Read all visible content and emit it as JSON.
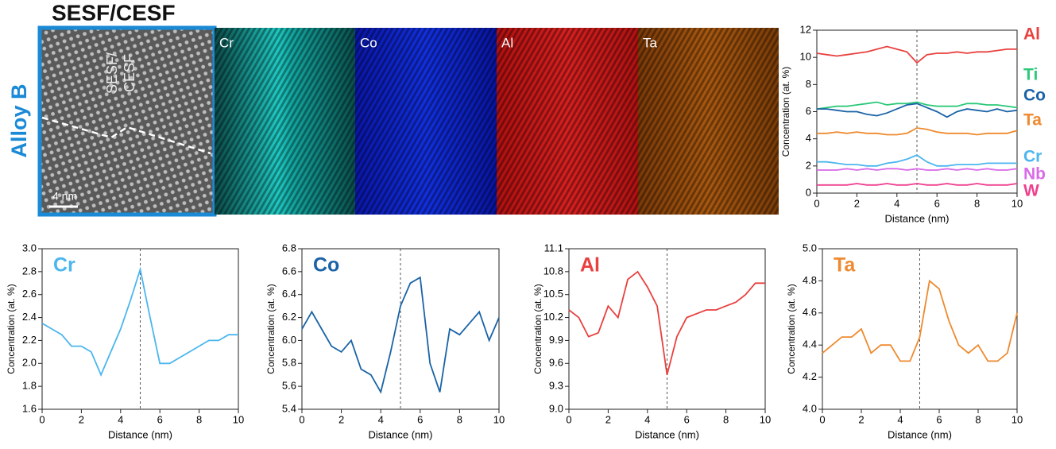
{
  "figure": {
    "heading": "SESF/CESF",
    "row_label": "Alloy B",
    "image_label": [
      "SESF/",
      "CESF"
    ],
    "scale_bar": "4 nm",
    "maps": [
      "Cr",
      "Co",
      "Al",
      "Ta"
    ]
  },
  "chart_data": [
    {
      "type": "line",
      "xlabel": "Distance (nm)",
      "ylabel": "Concentration (at. %)",
      "xlim": [
        0,
        10
      ],
      "ylim": [
        0,
        12
      ],
      "xticks": [
        0,
        2,
        4,
        6,
        8,
        10
      ],
      "yticks": [
        0,
        2,
        4,
        6,
        8,
        10,
        12
      ],
      "vline": 5,
      "legend": "right",
      "x": [
        0,
        0.5,
        1,
        1.5,
        2,
        2.5,
        3,
        3.5,
        4,
        4.5,
        5,
        5.5,
        6,
        6.5,
        7,
        7.5,
        8,
        8.5,
        9,
        9.5,
        10
      ],
      "series": [
        {
          "name": "Al",
          "color": "#e8413f",
          "values": [
            10.3,
            10.2,
            10.1,
            10.2,
            10.3,
            10.4,
            10.6,
            10.8,
            10.6,
            10.4,
            9.6,
            10.2,
            10.3,
            10.3,
            10.4,
            10.3,
            10.4,
            10.4,
            10.5,
            10.6,
            10.6
          ]
        },
        {
          "name": "Ti",
          "color": "#2cc97a",
          "values": [
            6.2,
            6.3,
            6.4,
            6.4,
            6.5,
            6.6,
            6.7,
            6.5,
            6.6,
            6.6,
            6.7,
            6.5,
            6.4,
            6.4,
            6.4,
            6.6,
            6.6,
            6.5,
            6.5,
            6.4,
            6.3
          ]
        },
        {
          "name": "Co",
          "color": "#1a63a6",
          "values": [
            6.2,
            6.2,
            6.1,
            6.0,
            6.0,
            5.8,
            5.7,
            5.9,
            6.2,
            6.5,
            6.6,
            6.3,
            6.0,
            5.6,
            6.0,
            6.2,
            6.1,
            6.0,
            6.2,
            6.0,
            6.1
          ]
        },
        {
          "name": "Ta",
          "color": "#ee8a2f",
          "values": [
            4.4,
            4.4,
            4.5,
            4.4,
            4.5,
            4.4,
            4.4,
            4.3,
            4.3,
            4.4,
            4.8,
            4.7,
            4.5,
            4.4,
            4.4,
            4.4,
            4.3,
            4.4,
            4.4,
            4.4,
            4.6
          ]
        },
        {
          "name": "Cr",
          "color": "#4cb6ee",
          "values": [
            2.3,
            2.3,
            2.2,
            2.1,
            2.1,
            2.0,
            2.0,
            2.2,
            2.3,
            2.5,
            2.8,
            2.3,
            2.0,
            2.0,
            2.1,
            2.1,
            2.1,
            2.2,
            2.2,
            2.2,
            2.2
          ]
        },
        {
          "name": "Nb",
          "color": "#d96ae8",
          "values": [
            1.7,
            1.7,
            1.7,
            1.8,
            1.7,
            1.8,
            1.7,
            1.8,
            1.8,
            1.7,
            1.8,
            1.7,
            1.7,
            1.8,
            1.7,
            1.8,
            1.7,
            1.8,
            1.7,
            1.7,
            1.8
          ]
        },
        {
          "name": "W",
          "color": "#ef3f8f",
          "values": [
            0.6,
            0.6,
            0.6,
            0.6,
            0.7,
            0.6,
            0.6,
            0.7,
            0.6,
            0.6,
            0.7,
            0.6,
            0.6,
            0.7,
            0.6,
            0.6,
            0.7,
            0.6,
            0.6,
            0.6,
            0.7
          ]
        }
      ]
    },
    {
      "type": "line",
      "label": "Cr",
      "color": "#4cb6ee",
      "xlabel": "Distance (nm)",
      "ylabel": "Concentration (at. %)",
      "xlim": [
        0,
        10
      ],
      "ylim": [
        1.6,
        3.0
      ],
      "xticks": [
        0,
        2,
        4,
        6,
        8,
        10
      ],
      "yticks": [
        1.6,
        1.8,
        {
          "value": 2,
          "label": "2.0"
        },
        2.2,
        2.4,
        2.6,
        2.8,
        {
          "value": 3,
          "label": "3.0"
        }
      ],
      "vline": 5,
      "x": [
        0,
        0.5,
        1,
        1.5,
        2,
        2.5,
        3,
        3.5,
        4,
        4.5,
        5,
        5.5,
        6,
        6.5,
        7,
        7.5,
        8,
        8.5,
        9,
        9.5,
        10
      ],
      "values": [
        2.35,
        2.3,
        2.25,
        2.15,
        2.15,
        2.1,
        1.9,
        2.1,
        2.3,
        2.55,
        2.82,
        2.4,
        2.0,
        2.0,
        2.05,
        2.1,
        2.15,
        2.2,
        2.2,
        2.25,
        2.25
      ]
    },
    {
      "type": "line",
      "label": "Co",
      "color": "#1a63a6",
      "xlabel": "Distance (nm)",
      "ylabel": "Concentration (at. %)",
      "xlim": [
        0,
        10
      ],
      "ylim": [
        5.4,
        6.8
      ],
      "xticks": [
        0,
        2,
        4,
        6,
        8,
        10
      ],
      "yticks": [
        5.4,
        5.6,
        5.8,
        {
          "value": 6,
          "label": "6.0"
        },
        6.2,
        6.4,
        6.6,
        6.8
      ],
      "vline": 5,
      "x": [
        0,
        0.5,
        1,
        1.5,
        2,
        2.5,
        3,
        3.5,
        4,
        4.5,
        5,
        5.5,
        6,
        6.5,
        7,
        7.5,
        8,
        8.5,
        9,
        9.5,
        10
      ],
      "values": [
        6.1,
        6.25,
        6.1,
        5.95,
        5.9,
        6.0,
        5.75,
        5.7,
        5.55,
        5.9,
        6.3,
        6.5,
        6.55,
        5.8,
        5.55,
        6.1,
        6.05,
        6.15,
        6.25,
        6.0,
        6.2
      ]
    },
    {
      "type": "line",
      "label": "Al",
      "color": "#e8413f",
      "xlabel": "Distance (nm)",
      "ylabel": "Concentration (at. %)",
      "xlim": [
        0,
        10
      ],
      "ylim": [
        9.0,
        11.1
      ],
      "xticks": [
        0,
        2,
        4,
        6,
        8,
        10
      ],
      "yticks": [
        {
          "value": 9,
          "label": "9.0"
        },
        9.3,
        9.6,
        9.9,
        10.2,
        10.5,
        10.8,
        11.1
      ],
      "vline": 5,
      "x": [
        0,
        0.5,
        1,
        1.5,
        2,
        2.5,
        3,
        3.5,
        4,
        4.5,
        5,
        5.5,
        6,
        6.5,
        7,
        7.5,
        8,
        8.5,
        9,
        9.5,
        10
      ],
      "values": [
        10.3,
        10.2,
        9.95,
        10.0,
        10.35,
        10.2,
        10.7,
        10.8,
        10.6,
        10.35,
        9.45,
        9.95,
        10.2,
        10.25,
        10.3,
        10.3,
        10.35,
        10.4,
        10.5,
        10.65,
        10.65
      ]
    },
    {
      "type": "line",
      "label": "Ta",
      "color": "#ee8a2f",
      "xlabel": "Distance (nm)",
      "ylabel": "Concentration (at. %)",
      "xlim": [
        0,
        10
      ],
      "ylim": [
        4.0,
        5.0
      ],
      "xticks": [
        0,
        2,
        4,
        6,
        8,
        10
      ],
      "yticks": [
        {
          "value": 4,
          "label": "4.0"
        },
        4.2,
        4.4,
        4.6,
        4.8,
        {
          "value": 5,
          "label": "5.0"
        }
      ],
      "vline": 5,
      "x": [
        0,
        0.5,
        1,
        1.5,
        2,
        2.5,
        3,
        3.5,
        4,
        4.5,
        5,
        5.5,
        6,
        6.5,
        7,
        7.5,
        8,
        8.5,
        9,
        9.5,
        10
      ],
      "values": [
        4.35,
        4.4,
        4.45,
        4.45,
        4.5,
        4.35,
        4.4,
        4.4,
        4.3,
        4.3,
        4.45,
        4.8,
        4.75,
        4.55,
        4.4,
        4.35,
        4.4,
        4.3,
        4.3,
        4.35,
        4.6
      ]
    }
  ]
}
